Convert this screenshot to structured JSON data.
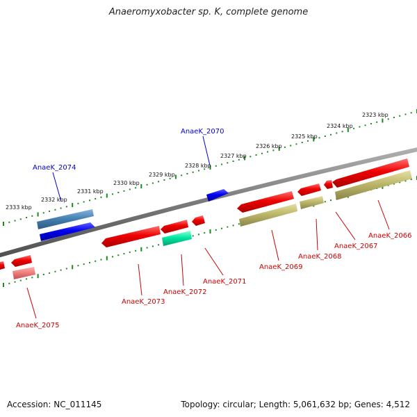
{
  "title": "Anaeromyxobacter sp. K, complete genome",
  "footer": {
    "accession": "Accession: NC_011145",
    "summary": "Topology: circular; Length: 5,061,632 bp; Genes: 4,512"
  },
  "scale_labels": [
    "2323 kbp",
    "2324 kbp",
    "2325 kbp",
    "2326 kbp",
    "2327 kbp",
    "2328 kbp",
    "2329 kbp",
    "2330 kbp",
    "2331 kbp",
    "2332 kbp",
    "2333 kbp"
  ],
  "colors": {
    "backbone": "#808080",
    "forward_gene": "#0000ee",
    "forward_gene_alt": "#4682b4",
    "reverse_gene": "#ee0000",
    "reverse_gene_light": "#f08080",
    "feature_olive": "#bdb76b",
    "feature_green": "#00e8a0",
    "tick": "#1a8a1a",
    "forward_label": "#0000cc",
    "reverse_label": "#cc0000"
  },
  "gene_labels": [
    {
      "name": "AnaeK_2070",
      "strand": "forward"
    },
    {
      "name": "AnaeK_2074",
      "strand": "forward"
    },
    {
      "name": "AnaeK_2066",
      "strand": "reverse"
    },
    {
      "name": "AnaeK_2067",
      "strand": "reverse"
    },
    {
      "name": "AnaeK_2068",
      "strand": "reverse"
    },
    {
      "name": "AnaeK_2069",
      "strand": "reverse"
    },
    {
      "name": "AnaeK_2071",
      "strand": "reverse"
    },
    {
      "name": "AnaeK_2072",
      "strand": "reverse"
    },
    {
      "name": "AnaeK_2073",
      "strand": "reverse"
    },
    {
      "name": "AnaeK_2075",
      "strand": "reverse"
    }
  ]
}
